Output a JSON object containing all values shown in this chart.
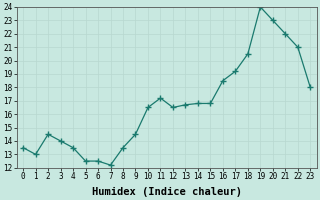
{
  "xlabel": "Humidex (Indice chaleur)",
  "x": [
    0,
    1,
    2,
    3,
    4,
    5,
    6,
    7,
    8,
    9,
    10,
    11,
    12,
    13,
    14,
    15,
    16,
    17,
    18,
    19,
    20,
    21,
    22,
    23
  ],
  "y": [
    13.5,
    13.0,
    14.5,
    14.0,
    13.5,
    12.5,
    12.5,
    12.2,
    13.5,
    14.5,
    16.5,
    17.2,
    16.5,
    16.7,
    16.8,
    16.8,
    18.5,
    19.2,
    20.5,
    24.0,
    23.0,
    22.0,
    21.0,
    18.0
  ],
  "line_color": "#1a7a6e",
  "marker": "+",
  "marker_size": 4,
  "bg_color": "#c8e8e0",
  "grid_color": "#b8d8d0",
  "ylim": [
    12,
    24
  ],
  "xlim": [
    -0.5,
    23.5
  ],
  "yticks": [
    12,
    13,
    14,
    15,
    16,
    17,
    18,
    19,
    20,
    21,
    22,
    23,
    24
  ],
  "xticks": [
    0,
    1,
    2,
    3,
    4,
    5,
    6,
    7,
    8,
    9,
    10,
    11,
    12,
    13,
    14,
    15,
    16,
    17,
    18,
    19,
    20,
    21,
    22,
    23
  ],
  "tick_fontsize": 5.5,
  "label_fontsize": 7.5
}
